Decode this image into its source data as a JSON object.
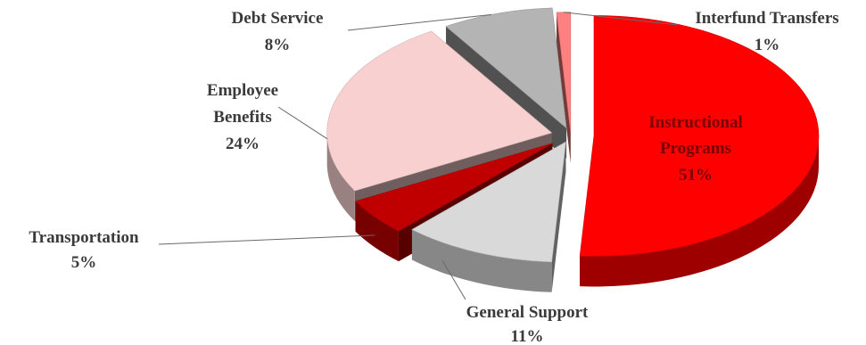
{
  "chart_data": {
    "type": "pie",
    "title": "",
    "slices": [
      {
        "key": "instructional",
        "label_lines": [
          "Instructional",
          "Programs"
        ],
        "pct_label": "51%",
        "value": 51,
        "color": "#ff0000"
      },
      {
        "key": "general_support",
        "label_lines": [
          "General Support"
        ],
        "pct_label": "11%",
        "value": 11,
        "color": "#d9d9d9"
      },
      {
        "key": "transportation",
        "label_lines": [
          "Transportation"
        ],
        "pct_label": "5%",
        "value": 5,
        "color": "#c00000"
      },
      {
        "key": "employee_benefits",
        "label_lines": [
          "Employee",
          "Benefits"
        ],
        "pct_label": "24%",
        "value": 24,
        "color": "#f8d0d0"
      },
      {
        "key": "debt_service",
        "label_lines": [
          "Debt Service"
        ],
        "pct_label": "8%",
        "value": 8,
        "color": "#b4b4b4"
      },
      {
        "key": "interfund_transfers",
        "label_lines": [
          "Interfund Transfers"
        ],
        "pct_label": "1%",
        "value": 1,
        "color": "#ff8080"
      }
    ],
    "legend": "none",
    "style": "3d-exploded"
  }
}
